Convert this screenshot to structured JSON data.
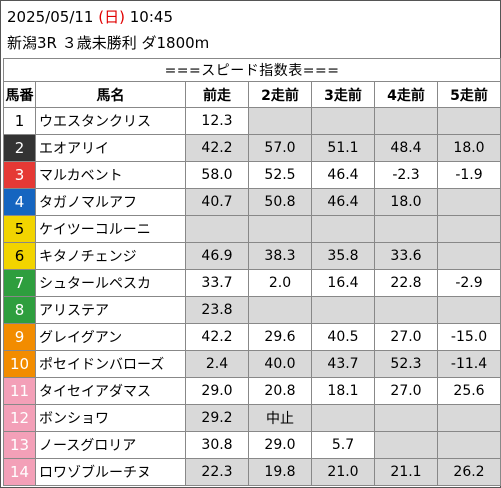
{
  "header": {
    "date": "2025/05/11",
    "dow_open": "(",
    "dow": "日",
    "dow_close": ")",
    "time": "10:45",
    "race": "新潟3R ３歳未勝利 ダ1800m"
  },
  "table": {
    "banner": "===スピード指数表===",
    "columns": [
      "馬番",
      "馬名",
      "前走",
      "2走前",
      "3走前",
      "4走前",
      "5走前"
    ],
    "rows": [
      {
        "num": "1",
        "name": "ウエスタンクリス",
        "vals": [
          "12.3",
          "",
          "",
          "",
          ""
        ]
      },
      {
        "num": "2",
        "name": "エオアリイ",
        "vals": [
          "42.2",
          "57.0",
          "51.1",
          "48.4",
          "18.0"
        ]
      },
      {
        "num": "3",
        "name": "マルカベント",
        "vals": [
          "58.0",
          "52.5",
          "46.4",
          "-2.3",
          "-1.9"
        ]
      },
      {
        "num": "4",
        "name": "タガノマルアフ",
        "vals": [
          "40.7",
          "50.8",
          "46.4",
          "18.0",
          ""
        ]
      },
      {
        "num": "5",
        "name": "ケイツーコルーニ",
        "vals": [
          "",
          "",
          "",
          "",
          ""
        ]
      },
      {
        "num": "6",
        "name": "キタノチェンジ",
        "vals": [
          "46.9",
          "38.3",
          "35.8",
          "33.6",
          ""
        ]
      },
      {
        "num": "7",
        "name": "シュタールペスカ",
        "vals": [
          "33.7",
          "2.0",
          "16.4",
          "22.8",
          "-2.9"
        ]
      },
      {
        "num": "8",
        "name": "アリステア",
        "vals": [
          "23.8",
          "",
          "",
          "",
          ""
        ]
      },
      {
        "num": "9",
        "name": "グレイグアン",
        "vals": [
          "42.2",
          "29.6",
          "40.5",
          "27.0",
          "-15.0"
        ]
      },
      {
        "num": "10",
        "name": "ポセイドンバローズ",
        "vals": [
          "2.4",
          "40.0",
          "43.7",
          "52.3",
          "-11.4"
        ]
      },
      {
        "num": "11",
        "name": "タイセイアダマス",
        "vals": [
          "29.0",
          "20.8",
          "18.1",
          "27.0",
          "25.6"
        ]
      },
      {
        "num": "12",
        "name": "ボンショワ",
        "vals": [
          "29.2",
          "中止",
          "",
          "",
          ""
        ]
      },
      {
        "num": "13",
        "name": "ノースグロリア",
        "vals": [
          "30.8",
          "29.0",
          "5.7",
          "",
          ""
        ]
      },
      {
        "num": "14",
        "name": "ロワゾブルーチヌ",
        "vals": [
          "22.3",
          "19.8",
          "21.0",
          "21.1",
          "26.2"
        ]
      }
    ],
    "gate_colors": {
      "1": {
        "bg": "#ffffff",
        "fg": "#000000"
      },
      "2": {
        "bg": "#333333",
        "fg": "#ffffff"
      },
      "3": {
        "bg": "#e53935",
        "fg": "#ffffff"
      },
      "4": {
        "bg": "#1565c0",
        "fg": "#ffffff"
      },
      "5": {
        "bg": "#f2d400",
        "fg": "#000000"
      },
      "6": {
        "bg": "#2e9e3e",
        "fg": "#ffffff"
      },
      "7": {
        "bg": "#f28c00",
        "fg": "#ffffff"
      },
      "8": {
        "bg": "#f3a0b8",
        "fg": "#ffffff"
      }
    },
    "row_gates": [
      "1",
      "2",
      "3",
      "4",
      "5",
      "5",
      "6",
      "6",
      "7",
      "7",
      "8",
      "8",
      "8",
      "8"
    ]
  }
}
